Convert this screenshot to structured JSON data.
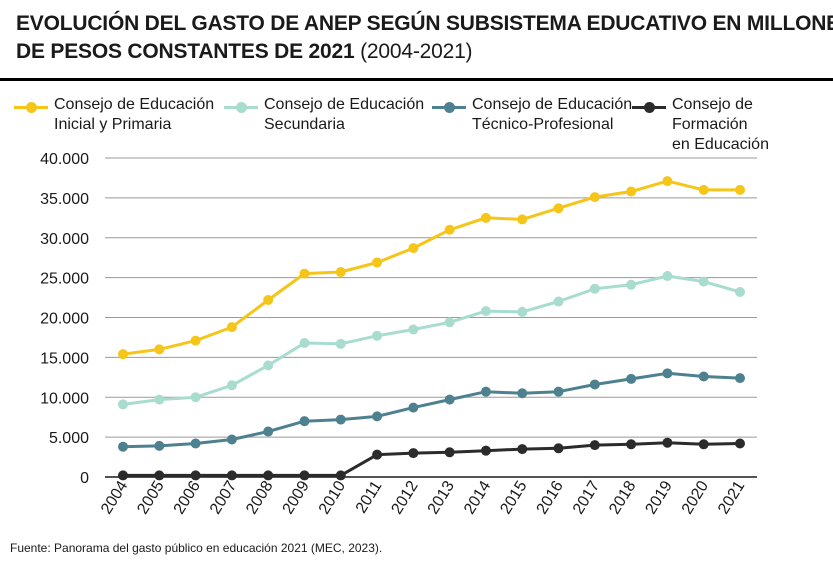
{
  "title": {
    "line1": "EVOLUCIÓN DEL GASTO DE ANEP SEGÚN SUBSISTEMA EDUCATIVO EN MILLONES",
    "line2_bold": "DE PESOS CONSTANTES DE 2021",
    "line2_paren": "(2004-2021)"
  },
  "legend": [
    {
      "label": "Consejo de Educación\nInicial y Primaria",
      "color": "#f5c518"
    },
    {
      "label": "Consejo de Educación\nSecundaria",
      "color": "#a8dccf"
    },
    {
      "label": "Consejo de Educación\nTécnico-Profesional",
      "color": "#4e8190"
    },
    {
      "label": "Consejo de Formación\nen Educación",
      "color": "#2b2b2b"
    }
  ],
  "chart_data": {
    "type": "line",
    "categories": [
      "2004",
      "2005",
      "2006",
      "2007",
      "2008",
      "2009",
      "2010",
      "2011",
      "2012",
      "2013",
      "2014",
      "2015",
      "2016",
      "2017",
      "2018",
      "2019",
      "2020",
      "2021"
    ],
    "ylim": [
      0,
      40000
    ],
    "yticks": [
      0,
      5000,
      10000,
      15000,
      20000,
      25000,
      30000,
      35000,
      40000
    ],
    "ytick_labels": [
      "0",
      "5.000",
      "10.000",
      "15.000",
      "20.000",
      "25.000",
      "30.000",
      "35.000",
      "40.000"
    ],
    "grid": true,
    "legend_position": "top",
    "series": [
      {
        "name": "Consejo de Educación Inicial y Primaria",
        "color": "#f5c518",
        "values": [
          15400,
          16000,
          17100,
          18800,
          22200,
          25500,
          25700,
          26900,
          28700,
          31000,
          32500,
          32300,
          33700,
          35100,
          35800,
          37100,
          36000,
          36000
        ]
      },
      {
        "name": "Consejo de Educación Secundaria",
        "color": "#a8dccf",
        "values": [
          9100,
          9700,
          10000,
          11500,
          14000,
          16800,
          16700,
          17700,
          18500,
          19400,
          20800,
          20700,
          22000,
          23600,
          24100,
          25200,
          24500,
          23200
        ]
      },
      {
        "name": "Consejo de Educación Técnico-Profesional",
        "color": "#4e8190",
        "values": [
          3800,
          3900,
          4200,
          4700,
          5700,
          7000,
          7200,
          7600,
          8700,
          9700,
          10700,
          10500,
          10700,
          11600,
          12300,
          13000,
          12600,
          12400
        ]
      },
      {
        "name": "Consejo de Formación en Educación",
        "color": "#2b2b2b",
        "values": [
          200,
          200,
          200,
          200,
          200,
          200,
          200,
          2800,
          3000,
          3100,
          3300,
          3500,
          3600,
          4000,
          4100,
          4300,
          4100,
          4200
        ]
      }
    ]
  },
  "source": "Fuente: Panorama del gasto público en educación 2021 (MEC, 2023)."
}
